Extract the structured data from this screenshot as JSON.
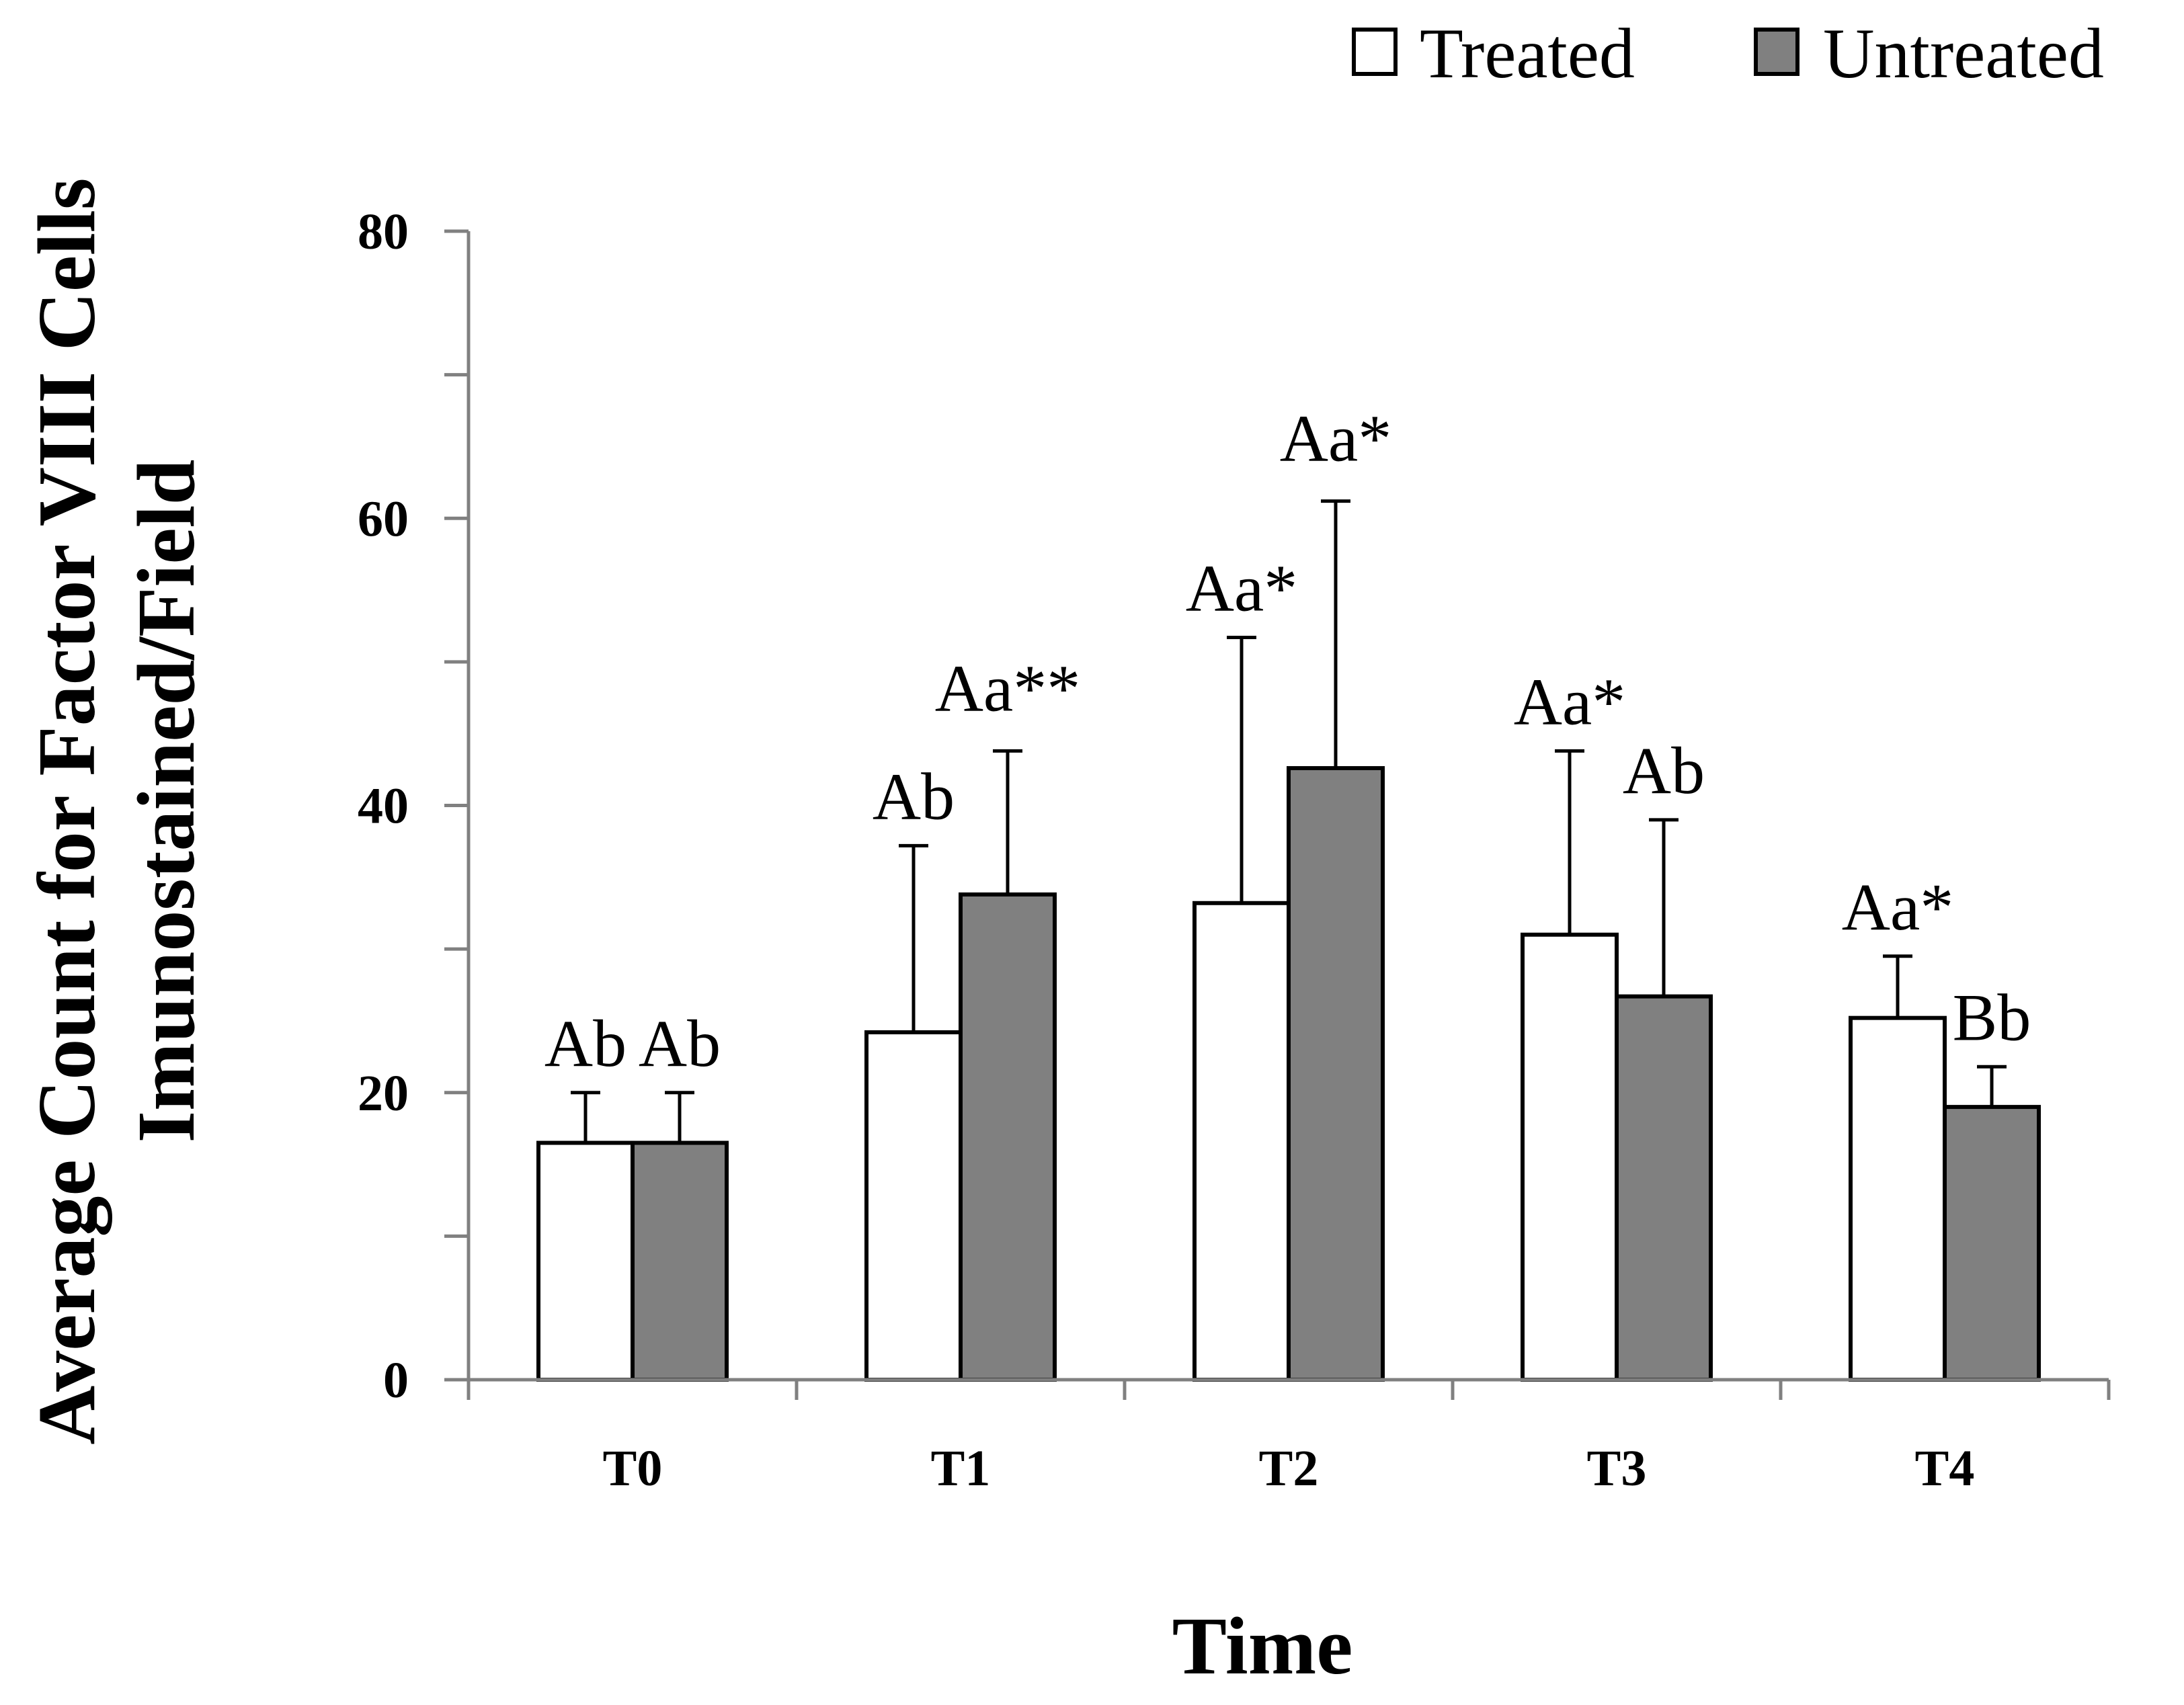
{
  "chart_data": {
    "type": "bar",
    "title": "",
    "xlabel": "Time",
    "ylabel_lines": [
      "Average Count for Factor VIII Cells",
      "Imunostained/Field"
    ],
    "categories": [
      "T0",
      "T1",
      "T2",
      "T3",
      "T4"
    ],
    "ylim": [
      0,
      80
    ],
    "yticks": [
      "0",
      "20",
      "40",
      "60",
      "80"
    ],
    "legend_position": "top-right",
    "series": [
      {
        "name": "Treated",
        "color": "#ffffff",
        "values": [
          16.5,
          24.2,
          33.2,
          31.0,
          25.2
        ],
        "errors": [
          3.5,
          13.0,
          18.5,
          12.8,
          4.3
        ],
        "labels": [
          "Ab",
          "Ab",
          "Aa*",
          "Aa*",
          "Aa*"
        ]
      },
      {
        "name": "Untreated",
        "color": "#808080",
        "values": [
          16.5,
          33.8,
          42.6,
          26.7,
          19.0
        ],
        "errors": [
          3.5,
          10.0,
          18.6,
          12.3,
          2.8
        ],
        "labels": [
          "Ab",
          "Aa**",
          "Aa*",
          "Ab",
          "Bb"
        ]
      }
    ]
  }
}
